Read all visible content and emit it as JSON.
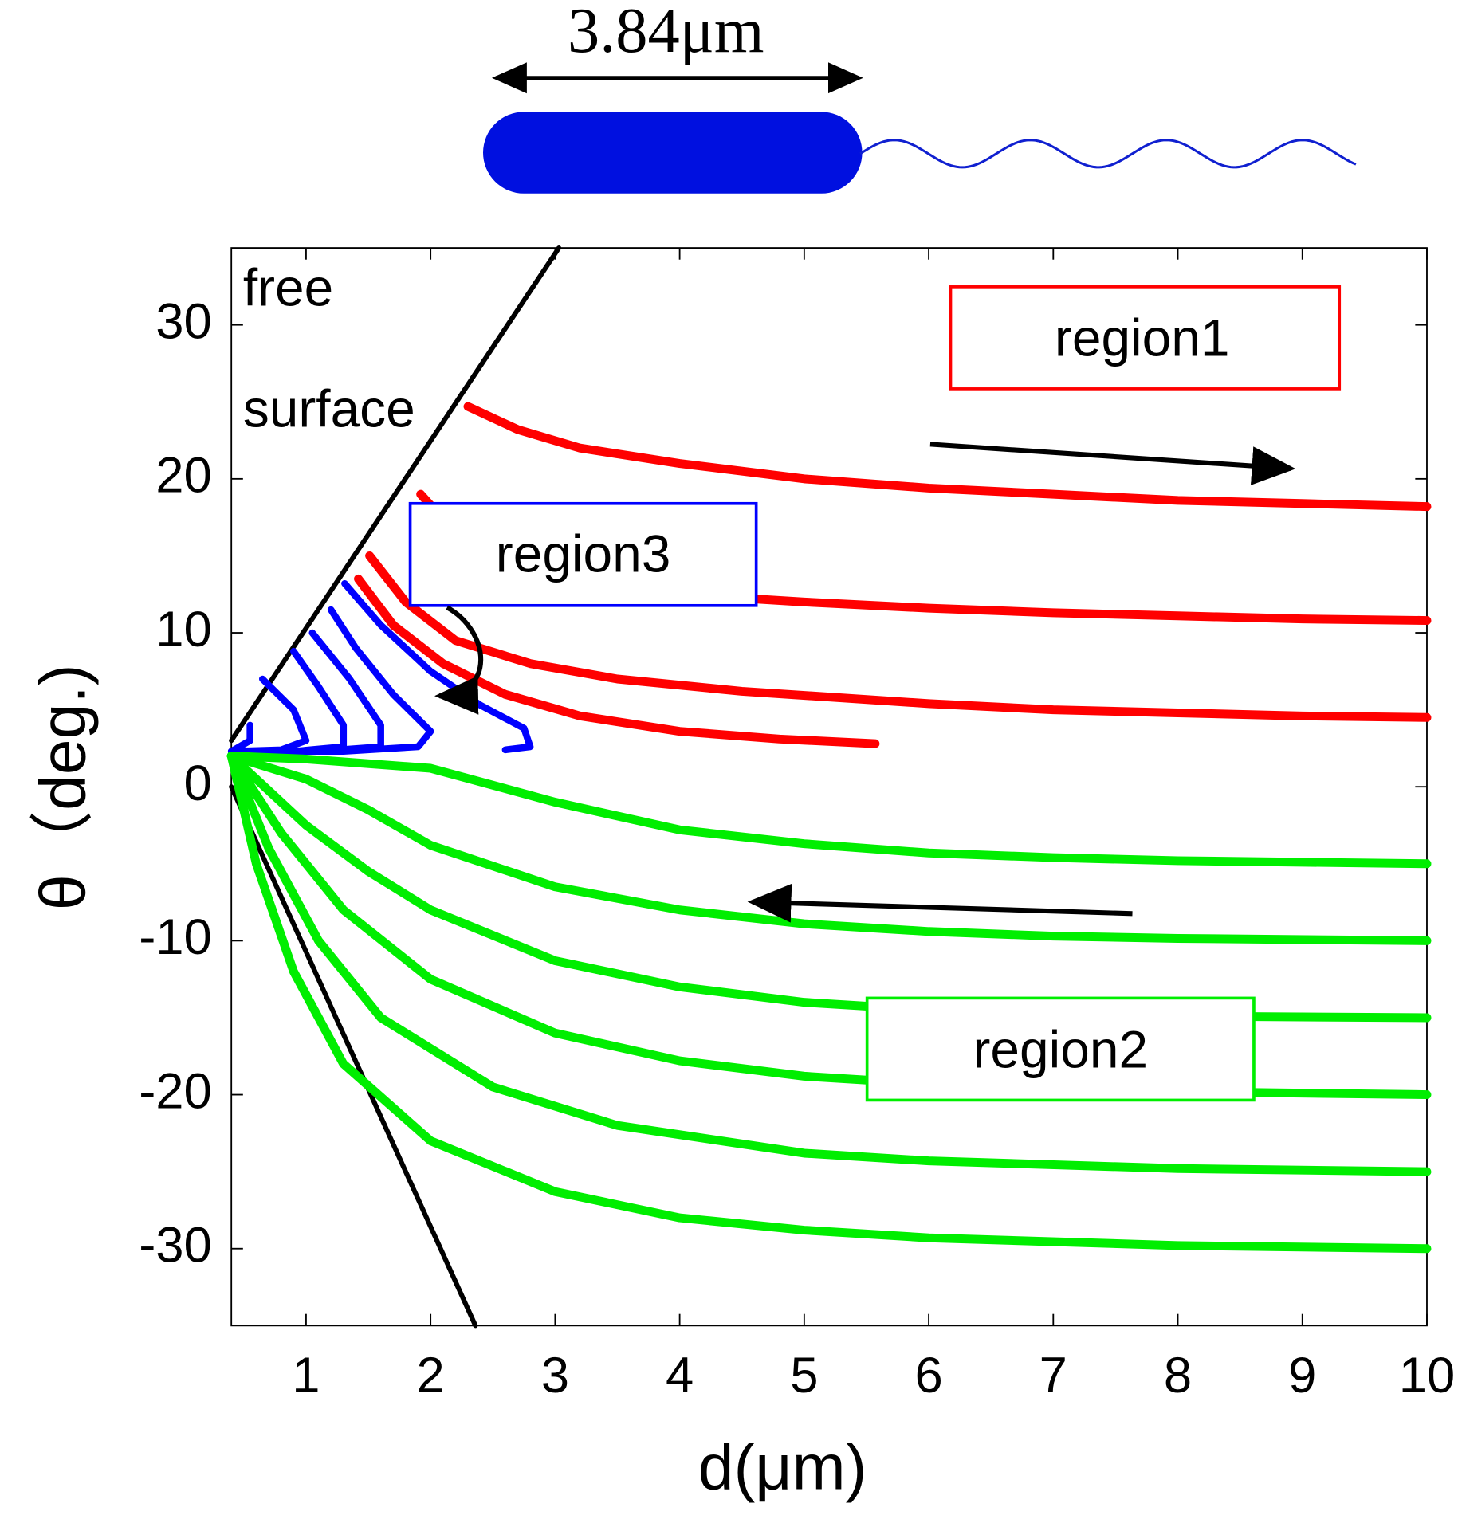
{
  "chart_data": {
    "type": "line",
    "xlabel": "d(μm)",
    "ylabel": "θ（deg.)",
    "scale_label": "3.84μm",
    "annotations": [
      "free",
      "surface",
      "region1",
      "region3",
      "region2"
    ],
    "xlim": [
      0.4,
      10
    ],
    "ylim": [
      -35,
      35
    ],
    "xticks": [
      1,
      2,
      3,
      4,
      5,
      6,
      7,
      8,
      9,
      10
    ],
    "yticks": [
      -30,
      -20,
      -10,
      0,
      10,
      20,
      30
    ],
    "series": [
      {
        "color": "#000000",
        "x": [
          0.4,
          3.03
        ],
        "values": [
          3,
          35
        ]
      },
      {
        "color": "#000000",
        "x": [
          0.4,
          2.36
        ],
        "values": [
          0,
          -35
        ]
      },
      {
        "color": "#ff0000",
        "x": [
          2.3,
          2.7,
          3.2,
          4,
          5,
          6,
          7,
          8,
          9,
          10
        ],
        "values": [
          24.7,
          23.2,
          22,
          21,
          20,
          19.4,
          19,
          18.6,
          18.4,
          18.2
        ]
      },
      {
        "color": "#ff0000",
        "x": [
          1.92,
          2.2,
          2.6,
          3,
          4,
          5,
          6,
          7,
          8,
          9,
          10
        ],
        "values": [
          19,
          16.5,
          14.5,
          13.5,
          12.5,
          12,
          11.6,
          11.3,
          11.1,
          10.9,
          10.8
        ]
      },
      {
        "color": "#ff0000",
        "x": [
          1.51,
          1.8,
          2.2,
          2.8,
          3.5,
          4.5,
          6,
          7,
          8,
          9,
          10
        ],
        "values": [
          15,
          12,
          9.5,
          8,
          7,
          6.2,
          5.4,
          5,
          4.8,
          4.6,
          4.5
        ]
      },
      {
        "color": "#ff0000",
        "x": [
          1.42,
          1.7,
          2.1,
          2.6,
          3.2,
          4,
          4.8,
          5.57
        ],
        "values": [
          13.5,
          10.5,
          8,
          6,
          4.6,
          3.6,
          3.1,
          2.8
        ]
      },
      {
        "color": "#0000ff",
        "x": [
          1.31,
          1.6,
          2,
          2.4,
          2.75,
          2.8,
          2.6
        ],
        "values": [
          13.2,
          10.5,
          7.5,
          5.3,
          3.8,
          2.6,
          2.4
        ]
      },
      {
        "color": "#0000ff",
        "x": [
          0.4,
          1.3,
          1.9,
          2,
          1.7,
          1.4,
          1.2
        ],
        "values": [
          2.3,
          2.3,
          2.6,
          3.6,
          6,
          9,
          11.5
        ]
      },
      {
        "color": "#0000ff",
        "x": [
          0.4,
          1.1,
          1.6,
          1.6,
          1.35,
          1.05
        ],
        "values": [
          2.3,
          2.3,
          2.6,
          4,
          7,
          10
        ]
      },
      {
        "color": "#0000ff",
        "x": [
          0.4,
          0.9,
          1.3,
          1.3,
          1.1,
          0.9
        ],
        "values": [
          2.3,
          2.3,
          2.6,
          4,
          6.5,
          8.8
        ]
      },
      {
        "color": "#0000ff",
        "x": [
          0.4,
          0.8,
          1,
          0.9,
          0.65
        ],
        "values": [
          2.3,
          2.4,
          3,
          5,
          7
        ]
      },
      {
        "color": "#0000ff",
        "x": [
          0.4,
          0.55,
          0.55
        ],
        "values": [
          2.3,
          3,
          4
        ]
      },
      {
        "color": "#00ee00",
        "x": [
          0.4,
          1,
          2,
          3,
          4,
          5,
          6,
          7,
          8,
          9,
          10
        ],
        "values": [
          2,
          1.8,
          1.2,
          -1,
          -2.8,
          -3.7,
          -4.3,
          -4.6,
          -4.8,
          -4.9,
          -5
        ]
      },
      {
        "color": "#00ee00",
        "x": [
          0.4,
          1,
          1.5,
          2,
          3,
          4,
          5,
          6,
          7,
          8,
          10
        ],
        "values": [
          2,
          0.5,
          -1.5,
          -3.8,
          -6.5,
          -8,
          -8.9,
          -9.4,
          -9.7,
          -9.85,
          -10
        ]
      },
      {
        "color": "#00ee00",
        "x": [
          0.4,
          1,
          1.5,
          2,
          3,
          4,
          5,
          6,
          7,
          8,
          10
        ],
        "values": [
          2,
          -2.5,
          -5.5,
          -8,
          -11.3,
          -13,
          -14,
          -14.5,
          -14.8,
          -14.9,
          -15
        ]
      },
      {
        "color": "#00ee00",
        "x": [
          0.4,
          0.8,
          1.3,
          2,
          3,
          4,
          5,
          6,
          8,
          10
        ],
        "values": [
          2,
          -3,
          -8,
          -12.5,
          -16,
          -17.8,
          -18.8,
          -19.3,
          -19.8,
          -20
        ]
      },
      {
        "color": "#00ee00",
        "x": [
          0.4,
          0.7,
          1.1,
          1.6,
          2.5,
          3.5,
          5,
          6,
          8,
          10
        ],
        "values": [
          2,
          -4,
          -10,
          -15,
          -19.5,
          -22,
          -23.8,
          -24.3,
          -24.8,
          -25
        ]
      },
      {
        "color": "#00ee00",
        "x": [
          0.4,
          0.6,
          0.9,
          1.3,
          2,
          3,
          4,
          5,
          6,
          8,
          10
        ],
        "values": [
          2,
          -5,
          -12,
          -18,
          -23,
          -26.3,
          -28,
          -28.8,
          -29.3,
          -29.8,
          -30
        ]
      }
    ]
  }
}
